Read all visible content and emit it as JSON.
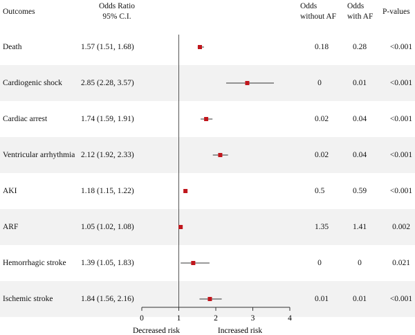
{
  "headers": {
    "outcomes": "Outcomes",
    "or_line1": "Odds Ratio",
    "or_line2": "95% C.I.",
    "odds_wo_line1": "Odds",
    "odds_wo_line2": "without AF",
    "odds_af_line1": "Odds",
    "odds_af_line2": "with AF",
    "pvalues": "P-values"
  },
  "rows": [
    {
      "outcome": "Death",
      "ci_text": "1.57 (1.51, 1.68)",
      "odds_without_af": "0.18",
      "odds_with_af": "0.28",
      "p_value": "<0.001"
    },
    {
      "outcome": "Cardiogenic shock",
      "ci_text": "2.85 (2.28, 3.57)",
      "odds_without_af": "0",
      "odds_with_af": "0.01",
      "p_value": "<0.001"
    },
    {
      "outcome": "Cardiac arrest",
      "ci_text": "1.74 (1.59, 1.91)",
      "odds_without_af": "0.02",
      "odds_with_af": "0.04",
      "p_value": "<0.001"
    },
    {
      "outcome": "Ventricular arrhythmia",
      "ci_text": "2.12 (1.92, 2.33)",
      "odds_without_af": "0.02",
      "odds_with_af": "0.04",
      "p_value": "<0.001"
    },
    {
      "outcome": "AKI",
      "ci_text": "1.18 (1.15, 1.22)",
      "odds_without_af": "0.5",
      "odds_with_af": "0.59",
      "p_value": "<0.001"
    },
    {
      "outcome": "ARF",
      "ci_text": "1.05 (1.02, 1.08)",
      "odds_without_af": "1.35",
      "odds_with_af": "1.41",
      "p_value": "0.002"
    },
    {
      "outcome": "Hemorrhagic stroke",
      "ci_text": "1.39 (1.05, 1.83)",
      "odds_without_af": "0",
      "odds_with_af": "0",
      "p_value": "0.021"
    },
    {
      "outcome": "Ischemic stroke",
      "ci_text": "1.84 (1.56, 2.16)",
      "odds_without_af": "0.01",
      "odds_with_af": "0.01",
      "p_value": "<0.001"
    }
  ],
  "chart_data": {
    "type": "scatter",
    "xlim": [
      0,
      4
    ],
    "x_ticks": [
      "0",
      "1",
      "2",
      "3",
      "4"
    ],
    "reference_line": 1,
    "axis_annotations": {
      "left": "Decreased risk",
      "right": "Increased risk"
    },
    "points": [
      {
        "label": "Death",
        "or": 1.57,
        "lower": 1.51,
        "upper": 1.68
      },
      {
        "label": "Cardiogenic shock",
        "or": 2.85,
        "lower": 2.28,
        "upper": 3.57
      },
      {
        "label": "Cardiac arrest",
        "or": 1.74,
        "lower": 1.59,
        "upper": 1.91
      },
      {
        "label": "Ventricular arrhythmia",
        "or": 2.12,
        "lower": 1.92,
        "upper": 2.33
      },
      {
        "label": "AKI",
        "or": 1.18,
        "lower": 1.15,
        "upper": 1.22
      },
      {
        "label": "ARF",
        "or": 1.05,
        "lower": 1.02,
        "upper": 1.08
      },
      {
        "label": "Hemorrhagic stroke",
        "or": 1.39,
        "lower": 1.05,
        "upper": 1.83
      },
      {
        "label": "Ischemic stroke",
        "or": 1.84,
        "lower": 1.56,
        "upper": 2.16
      }
    ],
    "colors": {
      "marker": "#c0161c",
      "ci_line": "#333333",
      "shade": "#f2f2f2"
    }
  }
}
